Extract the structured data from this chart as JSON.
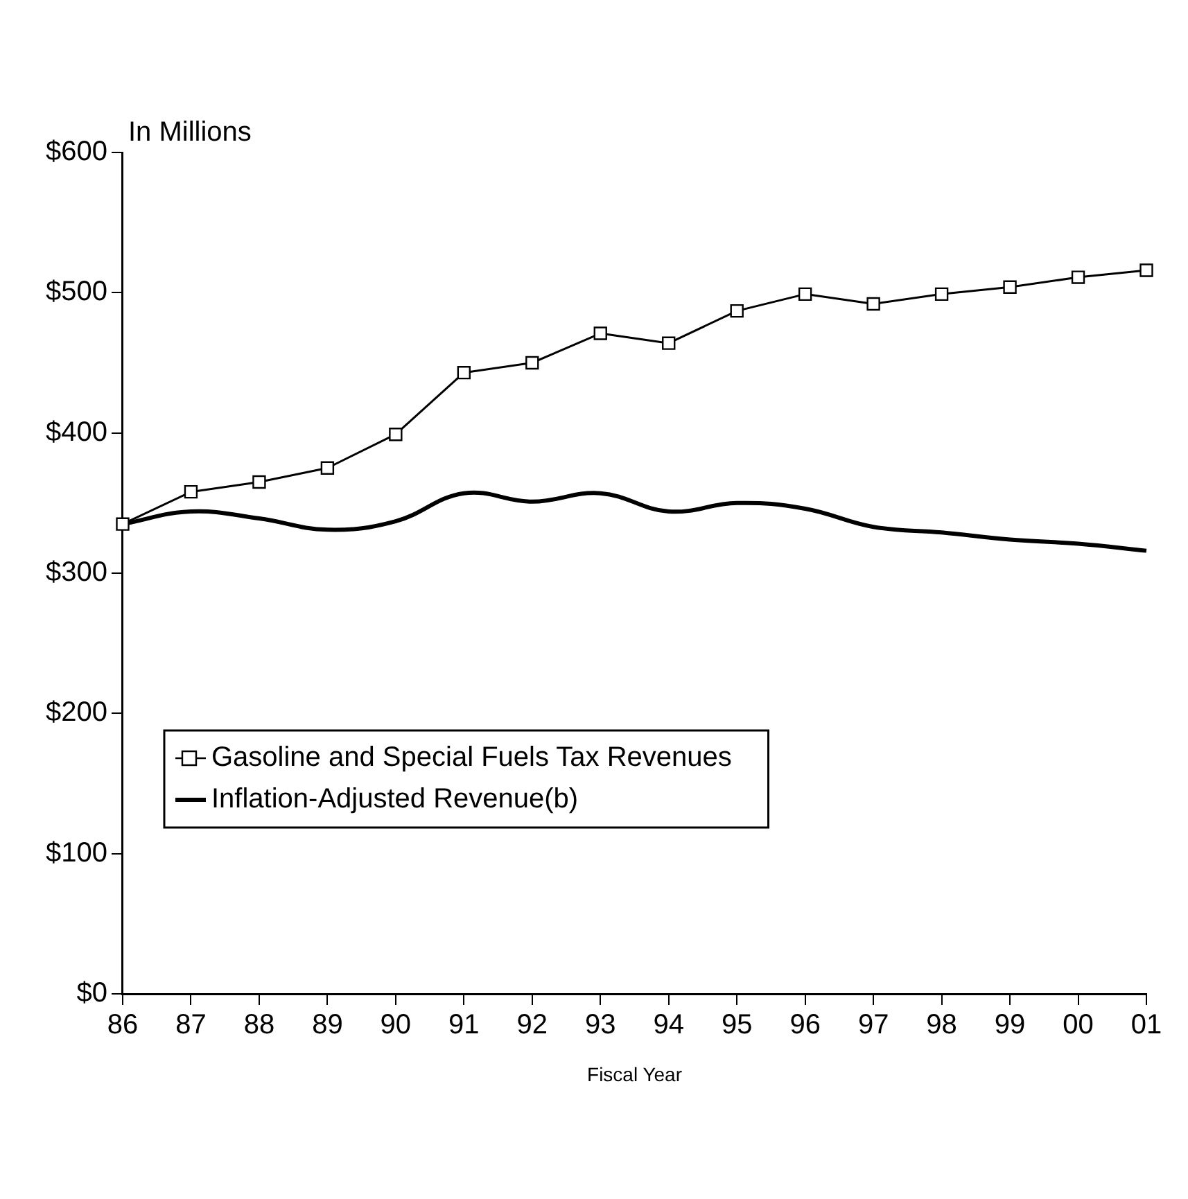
{
  "chart_data": {
    "type": "line",
    "ylabel": "In Millions",
    "xlabel": "Fiscal Year",
    "categories": [
      "86",
      "87",
      "88",
      "89",
      "90",
      "91",
      "92",
      "93",
      "94",
      "95",
      "96",
      "97",
      "98",
      "99",
      "00",
      "01"
    ],
    "series": [
      {
        "name": "Gasoline and Special Fuels Tax Revenues",
        "color": "#000000",
        "marker": "square",
        "line_style": "solid",
        "values": [
          335,
          358,
          365,
          375,
          399,
          443,
          450,
          471,
          464,
          487,
          499,
          492,
          499,
          504,
          511,
          516
        ]
      },
      {
        "name": "Inflation-Adjusted Revenue(b)",
        "color": "#000000",
        "marker": "none",
        "line_style": "solid",
        "values": [
          335,
          344,
          339,
          331,
          337,
          357,
          351,
          357,
          344,
          350,
          346,
          333,
          329,
          324,
          321,
          316
        ]
      }
    ],
    "ylim": [
      0,
      600
    ],
    "yticks": [
      {
        "value": 0,
        "label": "$0"
      },
      {
        "value": 100,
        "label": "$100"
      },
      {
        "value": 200,
        "label": "$200"
      },
      {
        "value": 300,
        "label": "$300"
      },
      {
        "value": 400,
        "label": "$400"
      },
      {
        "value": 500,
        "label": "$500"
      },
      {
        "value": 600,
        "label": "$600"
      }
    ],
    "grid": false,
    "legend": "bottom left"
  }
}
